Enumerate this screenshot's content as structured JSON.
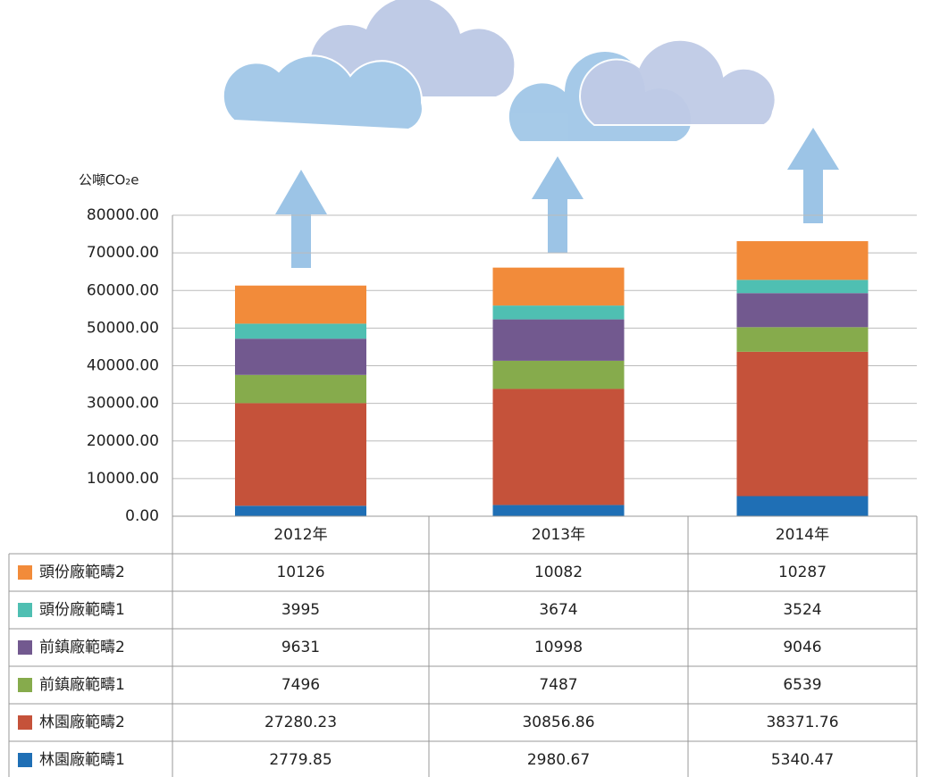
{
  "chart_data": {
    "type": "bar",
    "stacked": true,
    "y_label": "公噸CO₂e",
    "categories": [
      "2012年",
      "2013年",
      "2014年"
    ],
    "series": [
      {
        "name": "頭份廠範疇2",
        "color": "#f28b3a",
        "values": [
          10126,
          10082,
          10287
        ]
      },
      {
        "name": "頭份廠範疇1",
        "color": "#4fbfb2",
        "values": [
          3995,
          3674,
          3524
        ]
      },
      {
        "name": "前鎮廠範疇2",
        "color": "#72598f",
        "values": [
          9631,
          10998,
          9046
        ]
      },
      {
        "name": "前鎮廠範疇1",
        "color": "#86ab4c",
        "values": [
          7496,
          7487,
          6539
        ]
      },
      {
        "name": "林園廠範疇2",
        "color": "#c5523a",
        "values": [
          27280.23,
          30856.86,
          38371.76
        ]
      },
      {
        "name": "林園廠範疇1",
        "color": "#1f6fb5",
        "values": [
          2779.85,
          2980.67,
          5340.47
        ]
      }
    ],
    "ylim": [
      0,
      80000
    ],
    "yticks": [
      {
        "value": 0,
        "label": "0.00"
      },
      {
        "value": 10000,
        "label": "10000.00"
      },
      {
        "value": 20000,
        "label": "20000.00"
      },
      {
        "value": 30000,
        "label": "30000.00"
      },
      {
        "value": 40000,
        "label": "40000.00"
      },
      {
        "value": 50000,
        "label": "50000.00"
      },
      {
        "value": 60000,
        "label": "60000.00"
      },
      {
        "value": 70000,
        "label": "70000.00"
      },
      {
        "value": 80000,
        "label": "80000.00"
      }
    ],
    "grid": true
  }
}
